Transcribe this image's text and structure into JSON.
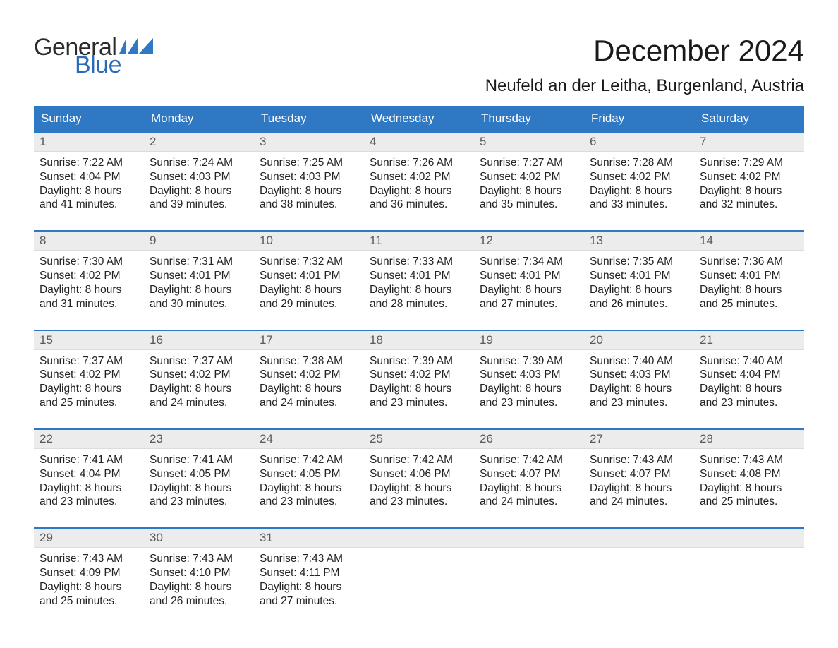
{
  "brand": {
    "word1": "General",
    "word2": "Blue",
    "flag_color": "#2f78c3"
  },
  "title": "December 2024",
  "location": "Neufeld an der Leitha, Burgenland, Austria",
  "colors": {
    "header_bg": "#2f78c3",
    "header_text": "#ffffff",
    "daynum_bg": "#ececec",
    "daynum_text": "#5a5a5a",
    "body_text": "#222222",
    "week_border": "#2f78c3",
    "page_bg": "#ffffff"
  },
  "typography": {
    "title_fontsize": 42,
    "location_fontsize": 24,
    "header_fontsize": 17,
    "daynum_fontsize": 17,
    "body_fontsize": 15.5,
    "font_family": "Arial"
  },
  "day_labels": [
    "Sunday",
    "Monday",
    "Tuesday",
    "Wednesday",
    "Thursday",
    "Friday",
    "Saturday"
  ],
  "weeks": [
    [
      {
        "n": "1",
        "l1": "Sunrise: 7:22 AM",
        "l2": "Sunset: 4:04 PM",
        "l3": "Daylight: 8 hours",
        "l4": "and 41 minutes."
      },
      {
        "n": "2",
        "l1": "Sunrise: 7:24 AM",
        "l2": "Sunset: 4:03 PM",
        "l3": "Daylight: 8 hours",
        "l4": "and 39 minutes."
      },
      {
        "n": "3",
        "l1": "Sunrise: 7:25 AM",
        "l2": "Sunset: 4:03 PM",
        "l3": "Daylight: 8 hours",
        "l4": "and 38 minutes."
      },
      {
        "n": "4",
        "l1": "Sunrise: 7:26 AM",
        "l2": "Sunset: 4:02 PM",
        "l3": "Daylight: 8 hours",
        "l4": "and 36 minutes."
      },
      {
        "n": "5",
        "l1": "Sunrise: 7:27 AM",
        "l2": "Sunset: 4:02 PM",
        "l3": "Daylight: 8 hours",
        "l4": "and 35 minutes."
      },
      {
        "n": "6",
        "l1": "Sunrise: 7:28 AM",
        "l2": "Sunset: 4:02 PM",
        "l3": "Daylight: 8 hours",
        "l4": "and 33 minutes."
      },
      {
        "n": "7",
        "l1": "Sunrise: 7:29 AM",
        "l2": "Sunset: 4:02 PM",
        "l3": "Daylight: 8 hours",
        "l4": "and 32 minutes."
      }
    ],
    [
      {
        "n": "8",
        "l1": "Sunrise: 7:30 AM",
        "l2": "Sunset: 4:02 PM",
        "l3": "Daylight: 8 hours",
        "l4": "and 31 minutes."
      },
      {
        "n": "9",
        "l1": "Sunrise: 7:31 AM",
        "l2": "Sunset: 4:01 PM",
        "l3": "Daylight: 8 hours",
        "l4": "and 30 minutes."
      },
      {
        "n": "10",
        "l1": "Sunrise: 7:32 AM",
        "l2": "Sunset: 4:01 PM",
        "l3": "Daylight: 8 hours",
        "l4": "and 29 minutes."
      },
      {
        "n": "11",
        "l1": "Sunrise: 7:33 AM",
        "l2": "Sunset: 4:01 PM",
        "l3": "Daylight: 8 hours",
        "l4": "and 28 minutes."
      },
      {
        "n": "12",
        "l1": "Sunrise: 7:34 AM",
        "l2": "Sunset: 4:01 PM",
        "l3": "Daylight: 8 hours",
        "l4": "and 27 minutes."
      },
      {
        "n": "13",
        "l1": "Sunrise: 7:35 AM",
        "l2": "Sunset: 4:01 PM",
        "l3": "Daylight: 8 hours",
        "l4": "and 26 minutes."
      },
      {
        "n": "14",
        "l1": "Sunrise: 7:36 AM",
        "l2": "Sunset: 4:01 PM",
        "l3": "Daylight: 8 hours",
        "l4": "and 25 minutes."
      }
    ],
    [
      {
        "n": "15",
        "l1": "Sunrise: 7:37 AM",
        "l2": "Sunset: 4:02 PM",
        "l3": "Daylight: 8 hours",
        "l4": "and 25 minutes."
      },
      {
        "n": "16",
        "l1": "Sunrise: 7:37 AM",
        "l2": "Sunset: 4:02 PM",
        "l3": "Daylight: 8 hours",
        "l4": "and 24 minutes."
      },
      {
        "n": "17",
        "l1": "Sunrise: 7:38 AM",
        "l2": "Sunset: 4:02 PM",
        "l3": "Daylight: 8 hours",
        "l4": "and 24 minutes."
      },
      {
        "n": "18",
        "l1": "Sunrise: 7:39 AM",
        "l2": "Sunset: 4:02 PM",
        "l3": "Daylight: 8 hours",
        "l4": "and 23 minutes."
      },
      {
        "n": "19",
        "l1": "Sunrise: 7:39 AM",
        "l2": "Sunset: 4:03 PM",
        "l3": "Daylight: 8 hours",
        "l4": "and 23 minutes."
      },
      {
        "n": "20",
        "l1": "Sunrise: 7:40 AM",
        "l2": "Sunset: 4:03 PM",
        "l3": "Daylight: 8 hours",
        "l4": "and 23 minutes."
      },
      {
        "n": "21",
        "l1": "Sunrise: 7:40 AM",
        "l2": "Sunset: 4:04 PM",
        "l3": "Daylight: 8 hours",
        "l4": "and 23 minutes."
      }
    ],
    [
      {
        "n": "22",
        "l1": "Sunrise: 7:41 AM",
        "l2": "Sunset: 4:04 PM",
        "l3": "Daylight: 8 hours",
        "l4": "and 23 minutes."
      },
      {
        "n": "23",
        "l1": "Sunrise: 7:41 AM",
        "l2": "Sunset: 4:05 PM",
        "l3": "Daylight: 8 hours",
        "l4": "and 23 minutes."
      },
      {
        "n": "24",
        "l1": "Sunrise: 7:42 AM",
        "l2": "Sunset: 4:05 PM",
        "l3": "Daylight: 8 hours",
        "l4": "and 23 minutes."
      },
      {
        "n": "25",
        "l1": "Sunrise: 7:42 AM",
        "l2": "Sunset: 4:06 PM",
        "l3": "Daylight: 8 hours",
        "l4": "and 23 minutes."
      },
      {
        "n": "26",
        "l1": "Sunrise: 7:42 AM",
        "l2": "Sunset: 4:07 PM",
        "l3": "Daylight: 8 hours",
        "l4": "and 24 minutes."
      },
      {
        "n": "27",
        "l1": "Sunrise: 7:43 AM",
        "l2": "Sunset: 4:07 PM",
        "l3": "Daylight: 8 hours",
        "l4": "and 24 minutes."
      },
      {
        "n": "28",
        "l1": "Sunrise: 7:43 AM",
        "l2": "Sunset: 4:08 PM",
        "l3": "Daylight: 8 hours",
        "l4": "and 25 minutes."
      }
    ],
    [
      {
        "n": "29",
        "l1": "Sunrise: 7:43 AM",
        "l2": "Sunset: 4:09 PM",
        "l3": "Daylight: 8 hours",
        "l4": "and 25 minutes."
      },
      {
        "n": "30",
        "l1": "Sunrise: 7:43 AM",
        "l2": "Sunset: 4:10 PM",
        "l3": "Daylight: 8 hours",
        "l4": "and 26 minutes."
      },
      {
        "n": "31",
        "l1": "Sunrise: 7:43 AM",
        "l2": "Sunset: 4:11 PM",
        "l3": "Daylight: 8 hours",
        "l4": "and 27 minutes."
      },
      {
        "empty": true
      },
      {
        "empty": true
      },
      {
        "empty": true
      },
      {
        "empty": true
      }
    ]
  ]
}
